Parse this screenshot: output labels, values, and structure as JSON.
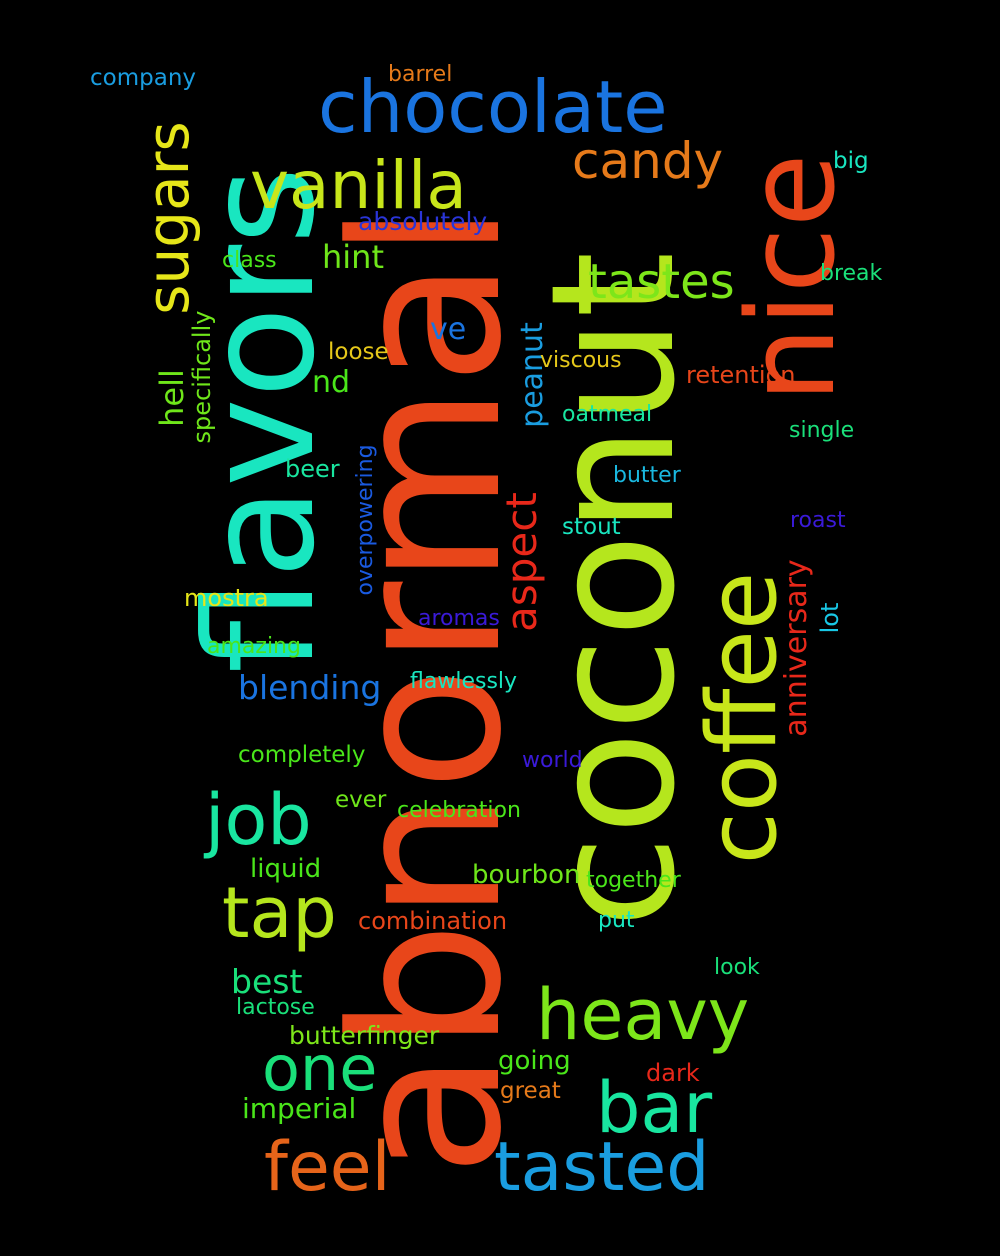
{
  "background": "#000000",
  "words": [
    {
      "text": "abnormal",
      "color": "#E8461A"
    },
    {
      "text": "coconut",
      "color": "#B5E61D"
    },
    {
      "text": "flavors",
      "color": "#19E6C0"
    },
    {
      "text": "nice",
      "color": "#E8461A"
    },
    {
      "text": "coffee",
      "color": "#C8E61A"
    },
    {
      "text": "chocolate",
      "color": "#1A74E0"
    },
    {
      "text": "vanilla",
      "color": "#C8E61A"
    },
    {
      "text": "sugars",
      "color": "#E6E619"
    },
    {
      "text": "candy",
      "color": "#E67A1A"
    },
    {
      "text": "tastes",
      "color": "#7DE61A"
    },
    {
      "text": "hint",
      "color": "#6FE61A"
    },
    {
      "text": "absolutely",
      "color": "#2A35D8"
    },
    {
      "text": "company",
      "color": "#1A9DE0"
    },
    {
      "text": "barrel",
      "color": "#E67A1A"
    },
    {
      "text": "big",
      "color": "#19E6C0"
    },
    {
      "text": "break",
      "color": "#1AE07A"
    },
    {
      "text": "class",
      "color": "#4AE61A"
    },
    {
      "text": "specifically",
      "color": "#6FE61A"
    },
    {
      "text": "hell",
      "color": "#6FE61A"
    },
    {
      "text": "loose",
      "color": "#E6C81A"
    },
    {
      "text": "ve",
      "color": "#1A74E0"
    },
    {
      "text": "nd",
      "color": "#4AE61A"
    },
    {
      "text": "peanut",
      "color": "#1A9DE0"
    },
    {
      "text": "viscous",
      "color": "#E6C81A"
    },
    {
      "text": "retention",
      "color": "#E8461A"
    },
    {
      "text": "oatmeal",
      "color": "#19E6A0"
    },
    {
      "text": "single",
      "color": "#1AE07A"
    },
    {
      "text": "beer",
      "color": "#19E6A0"
    },
    {
      "text": "overpowering",
      "color": "#1A5AE0"
    },
    {
      "text": "butter",
      "color": "#1AB8E0"
    },
    {
      "text": "roast",
      "color": "#3A1AD8"
    },
    {
      "text": "aspect",
      "color": "#E8281A"
    },
    {
      "text": "stout",
      "color": "#19E6C0"
    },
    {
      "text": "anniversary",
      "color": "#E8281A"
    },
    {
      "text": "mostra",
      "color": "#E6E619"
    },
    {
      "text": "aromas",
      "color": "#3A1AD8"
    },
    {
      "text": "lot",
      "color": "#19C8E6"
    },
    {
      "text": "amazing",
      "color": "#4AE61A"
    },
    {
      "text": "blending",
      "color": "#1A74E0"
    },
    {
      "text": "flawlessly",
      "color": "#19E6C0"
    },
    {
      "text": "completely",
      "color": "#4AE61A"
    },
    {
      "text": "world",
      "color": "#3A1AD8"
    },
    {
      "text": "job",
      "color": "#19E6A0"
    },
    {
      "text": "ever",
      "color": "#6FE61A"
    },
    {
      "text": "celebration",
      "color": "#4AE61A"
    },
    {
      "text": "liquid",
      "color": "#4AE61A"
    },
    {
      "text": "tap",
      "color": "#B5E61D"
    },
    {
      "text": "bourbon",
      "color": "#6FE61A"
    },
    {
      "text": "together",
      "color": "#4AE61A"
    },
    {
      "text": "combination",
      "color": "#E8461A"
    },
    {
      "text": "put",
      "color": "#19E6C0"
    },
    {
      "text": "look",
      "color": "#1AE07A"
    },
    {
      "text": "best",
      "color": "#1AE07A"
    },
    {
      "text": "heavy",
      "color": "#7DE61A"
    },
    {
      "text": "lactose",
      "color": "#1AE07A"
    },
    {
      "text": "butterfinger",
      "color": "#7DE61A"
    },
    {
      "text": "one",
      "color": "#1AE07A"
    },
    {
      "text": "going",
      "color": "#4AE61A"
    },
    {
      "text": "dark",
      "color": "#E8281A"
    },
    {
      "text": "great",
      "color": "#E67A1A"
    },
    {
      "text": "bar",
      "color": "#19E6A0"
    },
    {
      "text": "imperial",
      "color": "#4AE61A"
    },
    {
      "text": "feel",
      "color": "#E6641A"
    },
    {
      "text": "tasted",
      "color": "#1A9DE0"
    }
  ]
}
